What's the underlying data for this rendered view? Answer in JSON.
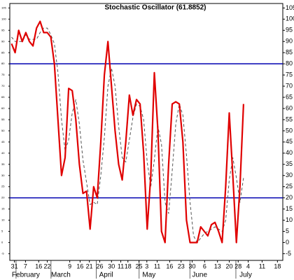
{
  "chart_data": {
    "type": "line",
    "title": "Stochastic Oscillator (61.8852)",
    "x": [
      0,
      1,
      2,
      3,
      4,
      5,
      6,
      7,
      8,
      9,
      10,
      11,
      12,
      13,
      14,
      15,
      16,
      17,
      18,
      19,
      20,
      21,
      22,
      23,
      24,
      25,
      26,
      27,
      28,
      29,
      30,
      31,
      32,
      33,
      34,
      35,
      36,
      37,
      38,
      39,
      40,
      41,
      42,
      43,
      44,
      45,
      46,
      47,
      48,
      49,
      50,
      51,
      52,
      53,
      54,
      55,
      56,
      57,
      58,
      59,
      60,
      61,
      62,
      63,
      64,
      65
    ],
    "series": [
      {
        "color": "#e00000",
        "style": "solid",
        "width": 2.2,
        "values": [
          89,
          85,
          95,
          90,
          94,
          90,
          88,
          96,
          99,
          94,
          94,
          92,
          80,
          55,
          30,
          38,
          69,
          68,
          55,
          35,
          22,
          23,
          6,
          25,
          20,
          45,
          75,
          90,
          70,
          50,
          35,
          28,
          45,
          66,
          57,
          64,
          62,
          40,
          6,
          30,
          76,
          50,
          5,
          0,
          35,
          62,
          63,
          62,
          45,
          10,
          0,
          0,
          0,
          7,
          5,
          3,
          8,
          9,
          5,
          0,
          25,
          58,
          30,
          0,
          25,
          62
        ]
      },
      {
        "color": "#555555",
        "style": "dashed",
        "width": 1,
        "values": [
          92,
          90,
          90,
          90,
          93,
          91,
          91,
          91,
          94,
          96,
          96,
          93,
          89,
          76,
          55,
          41,
          46,
          58,
          64,
          53,
          37,
          27,
          17,
          18,
          17,
          30,
          47,
          70,
          78,
          70,
          52,
          38,
          36,
          46,
          56,
          62,
          61,
          55,
          36,
          25,
          37,
          52,
          44,
          18,
          13,
          32,
          53,
          62,
          57,
          39,
          18,
          3,
          0,
          2,
          4,
          5,
          6,
          7,
          6,
          5,
          10,
          28,
          38,
          29,
          18,
          29
        ]
      }
    ],
    "hlines": [
      80,
      20
    ],
    "hline_color": "#0000b0",
    "xlim": [
      -0.5,
      76
    ],
    "xticks": [
      {
        "value": 0.8,
        "label": "31"
      },
      {
        "value": 3.9,
        "label": "7"
      },
      {
        "value": 7.6,
        "label": "16"
      },
      {
        "value": 10,
        "label": "22"
      },
      {
        "value": 16.3,
        "label": "9"
      },
      {
        "value": 19.2,
        "label": "16"
      },
      {
        "value": 21.8,
        "label": "21"
      },
      {
        "value": 24.7,
        "label": "26"
      },
      {
        "value": 28,
        "label": "30"
      },
      {
        "value": 30.6,
        "label": "11"
      },
      {
        "value": 32.6,
        "label": "18"
      },
      {
        "value": 35.7,
        "label": "25"
      },
      {
        "value": 37.9,
        "label": "3"
      },
      {
        "value": 40.8,
        "label": "11"
      },
      {
        "value": 44.3,
        "label": "16"
      },
      {
        "value": 47.5,
        "label": "23"
      },
      {
        "value": 50.6,
        "label": "30"
      },
      {
        "value": 54.1,
        "label": "6"
      },
      {
        "value": 57.7,
        "label": "13"
      },
      {
        "value": 61,
        "label": "20"
      },
      {
        "value": 63.5,
        "label": "28"
      },
      {
        "value": 66.3,
        "label": "4"
      },
      {
        "value": 70.2,
        "label": "11"
      },
      {
        "value": 74.5,
        "label": "18"
      }
    ],
    "months": [
      {
        "value": 4,
        "label": "February"
      },
      {
        "value": 13.8,
        "label": "March"
      },
      {
        "value": 26.5,
        "label": "April"
      },
      {
        "value": 38.5,
        "label": "May"
      },
      {
        "value": 52.7,
        "label": "June"
      },
      {
        "value": 65.6,
        "label": "July"
      }
    ],
    "ylim": [
      -8,
      107
    ],
    "yticks": [
      -5,
      0,
      5,
      10,
      15,
      20,
      25,
      30,
      35,
      40,
      45,
      50,
      55,
      60,
      65,
      70,
      75,
      80,
      85,
      90,
      95,
      100,
      105
    ]
  }
}
